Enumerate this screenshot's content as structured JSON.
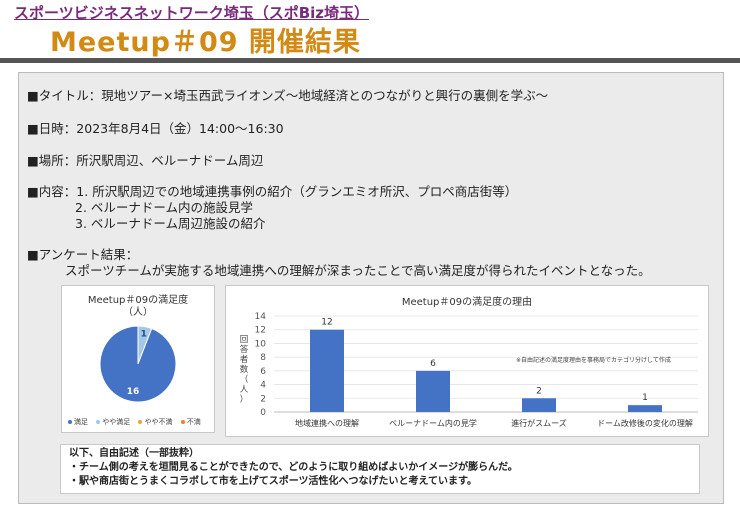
{
  "header": {
    "org": "スポーツビジネスネットワーク埼玉（スポBiz埼玉）",
    "title": "Meetup＃09 開催結果"
  },
  "details": {
    "title_line": "■タイトル：現地ツアー×埼玉西武ライオンズ～地域経済とのつながりと興行の裏側を学ぶ～",
    "date_line": "■日時：2023年8月4日（金）14:00～16:30",
    "place_line": "■場所：所沢駅周辺、ベルーナドーム周辺",
    "content_line1": "■内容：1. 所沢駅周辺での地域連携事例の紹介（グランエミオ所沢、プロペ商店街等）",
    "content_line2": "2. ベルーナドーム内の施設見学",
    "content_line3": "3. ベルーナドーム周辺施設の紹介",
    "survey_label": "■アンケート結果：",
    "survey_text": "スポーツチームが実施する地域連携への理解が深まったことで高い満足度が得られたイベントとなった。"
  },
  "pie": {
    "title": "Meetup＃09の満足度",
    "unit": "（人）",
    "legend": [
      "満足",
      "やや満足",
      "やや不満",
      "不満"
    ],
    "legend_colors": [
      "#4472c4",
      "#a5c8e8",
      "#f0a040",
      "#f08030"
    ]
  },
  "bar": {
    "note": "※自由記述の満足度理由を事務局でカテゴリ分けして作成",
    "ylabel": "回答者数（人）"
  },
  "chart_data": [
    {
      "type": "pie",
      "title": "Meetup＃09の満足度",
      "unit": "（人）",
      "categories": [
        "満足",
        "やや満足",
        "やや不満",
        "不満"
      ],
      "values": [
        16,
        1,
        0,
        0
      ],
      "colors": [
        "#4472c4",
        "#a5c8e8",
        "#f0a040",
        "#f08030"
      ],
      "legend": "bottom"
    },
    {
      "type": "bar",
      "title": "Meetup＃09の満足度の理由",
      "categories": [
        "地域連携への理解",
        "ベルーナドーム内の見学",
        "進行がスムーズ",
        "ドーム改修後の変化の理解"
      ],
      "values": [
        12,
        6,
        2,
        1
      ],
      "ylabel": "回答者数（人）",
      "ylim": [
        0,
        14
      ],
      "yticks": [
        0,
        2,
        4,
        6,
        8,
        10,
        12,
        14
      ],
      "color": "#4472c4",
      "grid": true
    }
  ],
  "comments": {
    "heading": "以下、自由記述（一部抜粋）",
    "items": [
      "・チーム側の考えを垣間見ることができたので、どのように取り組めばよいかイメージが膨らんだ。",
      "・駅や商店街とうまくコラボして市を上げてスポーツ活性化へつなげたいと考えています。"
    ]
  }
}
